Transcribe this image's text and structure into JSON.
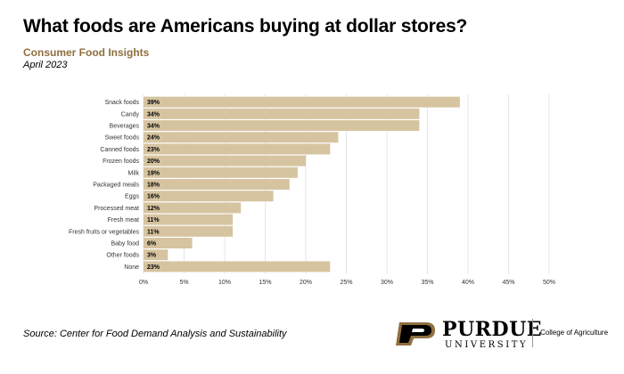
{
  "header": {
    "title": "What foods are Americans buying at dollar stores?",
    "subtitle": "Consumer Food Insights",
    "date": "April 2023"
  },
  "footer": {
    "source": "Source:  Center for Food Demand Analysis and Sustainability",
    "logo_name": "PURDUE",
    "logo_sub": "UNIVERSITY",
    "college": "College of Agriculture"
  },
  "colors": {
    "bar": "#d6c4a0",
    "grid": "#e6e6e6",
    "subtitle": "#8e6f3e"
  },
  "chart_data": {
    "type": "bar",
    "orientation": "horizontal",
    "categories": [
      "Snack foods",
      "Candy",
      "Beverages",
      "Sweet foods",
      "Canned foods",
      "Frozen foods",
      "Milk",
      "Packaged meals",
      "Eggs",
      "Processed meat",
      "Fresh meat",
      "Fresh fruits or vegetables",
      "Baby food",
      "Other foods",
      "None"
    ],
    "values": [
      39,
      34,
      34,
      24,
      23,
      20,
      19,
      18,
      16,
      12,
      11,
      11,
      6,
      3,
      23
    ],
    "data_labels": [
      "39%",
      "34%",
      "34%",
      "24%",
      "23%",
      "20%",
      "19%",
      "18%",
      "16%",
      "12%",
      "11%",
      "11%",
      "6%",
      "3%",
      "23%"
    ],
    "xlim": [
      0,
      50
    ],
    "x_ticks": [
      "0%",
      "5%",
      "10%",
      "15%",
      "20%",
      "25%",
      "30%",
      "35%",
      "40%",
      "45%",
      "50%"
    ],
    "grid": true,
    "legend": "none"
  }
}
